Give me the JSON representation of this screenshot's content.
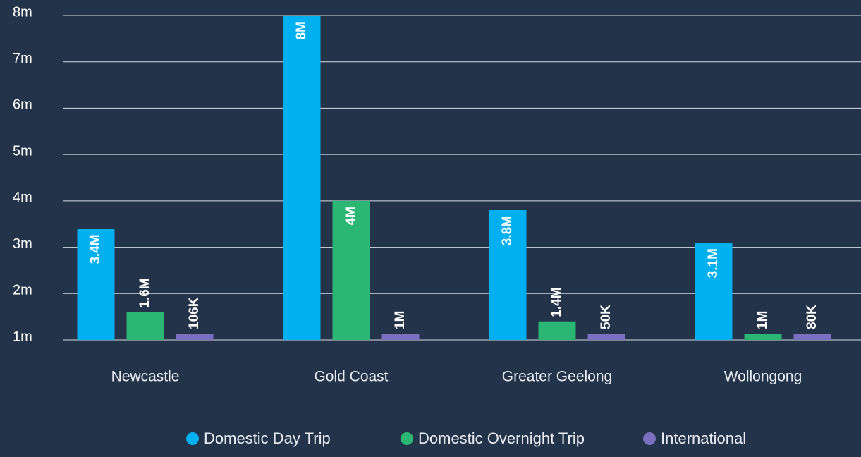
{
  "chart_data": {
    "type": "bar",
    "categories": [
      "Newcastle",
      "Gold Coast",
      "Greater Geelong",
      "Wollongong"
    ],
    "series": [
      {
        "name": "Domestic Day Trip",
        "color": "#00b0f0",
        "values": [
          3.4,
          8,
          3.8,
          3.1
        ],
        "value_labels": [
          "3.4M",
          "8M",
          "3.8M",
          "3.1M"
        ]
      },
      {
        "name": "Domestic Overnight Trip",
        "color": "#2bb673",
        "values": [
          1.6,
          4,
          1.4,
          1
        ],
        "value_labels": [
          "1.6M",
          "4M",
          "1.4M",
          "1M"
        ]
      },
      {
        "name": "International",
        "color": "#7b6fc0",
        "values": [
          0.106,
          1,
          0.05,
          0.08
        ],
        "value_labels": [
          "106K",
          "1M",
          "50K",
          "80K"
        ]
      }
    ],
    "ylim": [
      1,
      8
    ],
    "yticks": [
      {
        "value": 1,
        "label": "1m"
      },
      {
        "value": 2,
        "label": "2m"
      },
      {
        "value": 3,
        "label": "3m"
      },
      {
        "value": 4,
        "label": "4m"
      },
      {
        "value": 5,
        "label": "5m"
      },
      {
        "value": 6,
        "label": "6m"
      },
      {
        "value": 7,
        "label": "7m"
      },
      {
        "value": 8,
        "label": "8m"
      }
    ],
    "grid": true,
    "legend": "bottom"
  }
}
